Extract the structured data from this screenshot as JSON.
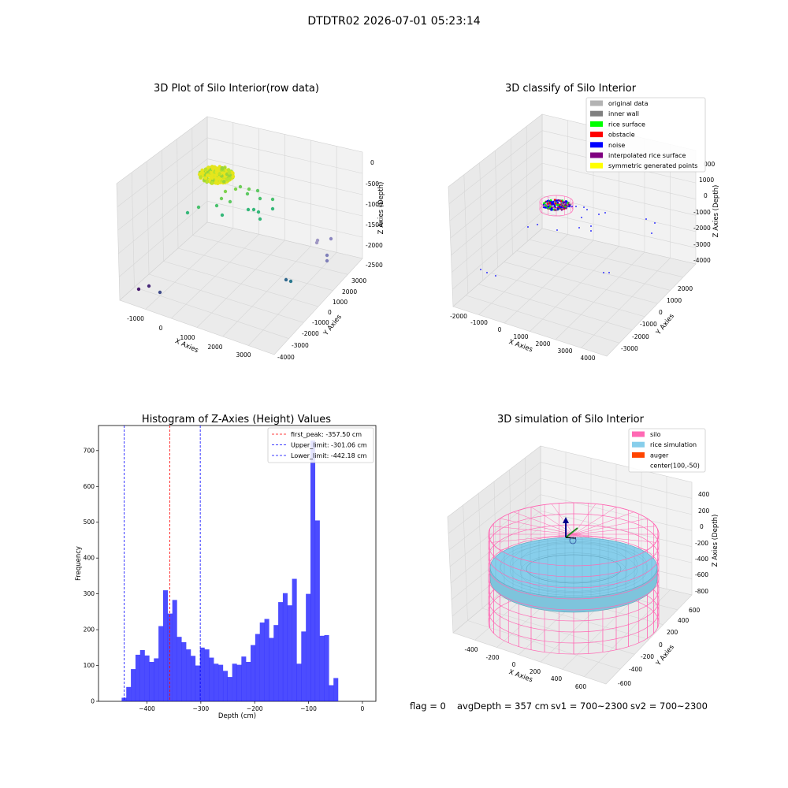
{
  "suptitle": "DTDTR02 2026-07-01 05:23:14",
  "footer": {
    "flag": "flag = 0",
    "avg": "avgDepth = 357 cm",
    "sv1": "sv1 = 700~2300",
    "sv2": "sv2 = 700~2300"
  },
  "chart_data": [
    {
      "type": "scatter",
      "title": "3D Plot of Silo Interior(row data)",
      "xlabel": "X Axies",
      "ylabel": "Y Axies",
      "zlabel": "Z Axies (Depth)",
      "x_ticks": [
        "-1000",
        "0",
        "1000",
        "2000",
        "3000"
      ],
      "y_ticks": [
        "-4000",
        "-3000",
        "-2000",
        "-1000",
        "0",
        "1000",
        "2000",
        "3000"
      ],
      "z_ticks": [
        "0",
        "-500",
        "-1000",
        "-1500",
        "-2000",
        "-2500"
      ],
      "note": "colored by depth (viridis)"
    },
    {
      "type": "scatter",
      "title": "3D classify of Silo Interior",
      "xlabel": "X Axies",
      "ylabel": "Y Axies",
      "zlabel": "Z Axies (Depth)",
      "x_ticks": [
        "-2000",
        "-1000",
        "0",
        "1000",
        "2000",
        "3000",
        "4000"
      ],
      "y_ticks": [
        "-3000",
        "-2000",
        "-1000",
        "0",
        "1000",
        "2000"
      ],
      "z_ticks": [
        "2000",
        "1000",
        "0",
        "-1000",
        "-2000",
        "-3000",
        "-4000"
      ],
      "z_top_tick_partial": "000",
      "legend_position": "top-right",
      "legend": [
        {
          "label": "original data",
          "color": "#b3b3b3"
        },
        {
          "label": "inner wall",
          "color": "#808080"
        },
        {
          "label": "rice surface",
          "color": "#00ff00"
        },
        {
          "label": "obstacle",
          "color": "#ff0000"
        },
        {
          "label": "noise",
          "color": "#0000ff"
        },
        {
          "label": "interpolated rice surface",
          "color": "#800080"
        },
        {
          "label": "symmetric generated points",
          "color": "#ffff00"
        }
      ]
    },
    {
      "type": "bar",
      "title": "Histogram of Z-Axies (Height) Values",
      "xlabel": "Depth (cm)",
      "ylabel": "Frequency",
      "xlim": [
        -490,
        25
      ],
      "ylim": [
        0,
        770
      ],
      "bar_color": "#0000ff",
      "x_ticks": [
        -400,
        -300,
        -200,
        -100,
        0
      ],
      "y_ticks": [
        0,
        100,
        200,
        300,
        400,
        500,
        600,
        700
      ],
      "bin_start": -447,
      "bin_width": 8.55,
      "values": [
        10,
        40,
        90,
        130,
        143,
        128,
        110,
        120,
        210,
        310,
        245,
        283,
        180,
        165,
        145,
        127,
        100,
        150,
        145,
        122,
        105,
        102,
        85,
        68,
        105,
        102,
        125,
        110,
        157,
        188,
        220,
        230,
        177,
        213,
        277,
        302,
        268,
        342,
        105,
        195,
        300,
        728,
        505,
        183,
        185,
        45,
        65
      ],
      "vlines": [
        {
          "x": -357.5,
          "color": "#ff0000",
          "label": "first_peak: -357.50 cm"
        },
        {
          "x": -301.06,
          "color": "#0000ff",
          "label": "Upper_limit: -301.06 cm"
        },
        {
          "x": -442.18,
          "color": "#0000ff",
          "label": "Lower_limit: -442.18 cm"
        }
      ],
      "legend_position": "top-right"
    },
    {
      "type": "scatter",
      "title": "3D simulation of Silo Interior",
      "xlabel": "X Axies",
      "ylabel": "Y Axies",
      "zlabel": "Z Axies (Depth)",
      "x_ticks": [
        "-400",
        "-200",
        "0",
        "200",
        "400",
        "600"
      ],
      "y_ticks": [
        "-600",
        "-400",
        "-200",
        "0",
        "200",
        "400",
        "600"
      ],
      "z_ticks": [
        "400",
        "200",
        "0",
        "-200",
        "-400",
        "-600",
        "-800"
      ],
      "legend_position": "top-right",
      "legend": [
        {
          "label": "silo",
          "color": "#ff69b4"
        },
        {
          "label": "rice simulation",
          "color": "#87ceeb"
        },
        {
          "label": "auger",
          "color": "#ff4500"
        },
        {
          "label": "center(100,-50)",
          "color": ""
        }
      ]
    }
  ]
}
